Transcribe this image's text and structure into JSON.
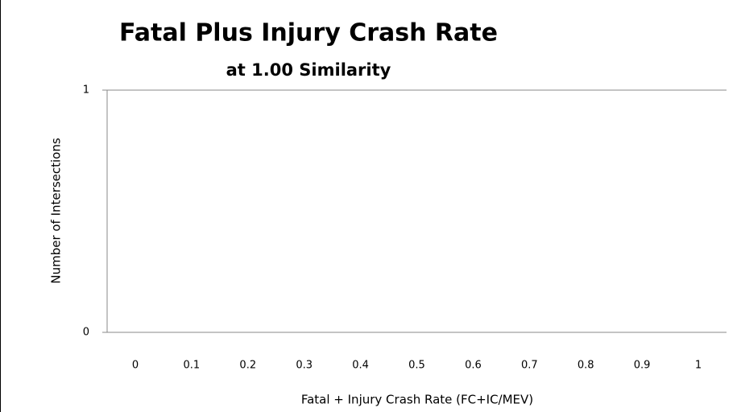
{
  "chart_data": {
    "type": "bar",
    "title": "Fatal Plus Injury Crash Rate",
    "subtitle": "at 1.00 Similarity",
    "x_label": "Fatal + Injury Crash Rate (FC+IC/MEV)",
    "y_label": "Number of Intersections",
    "categories": [
      "0",
      "0.1",
      "0.2",
      "0.3",
      "0.4",
      "0.5",
      "0.6",
      "0.7",
      "0.8",
      "0.9",
      "1"
    ],
    "ylim": [
      0,
      1
    ],
    "yticks": [
      0,
      1
    ],
    "grid": true
  }
}
